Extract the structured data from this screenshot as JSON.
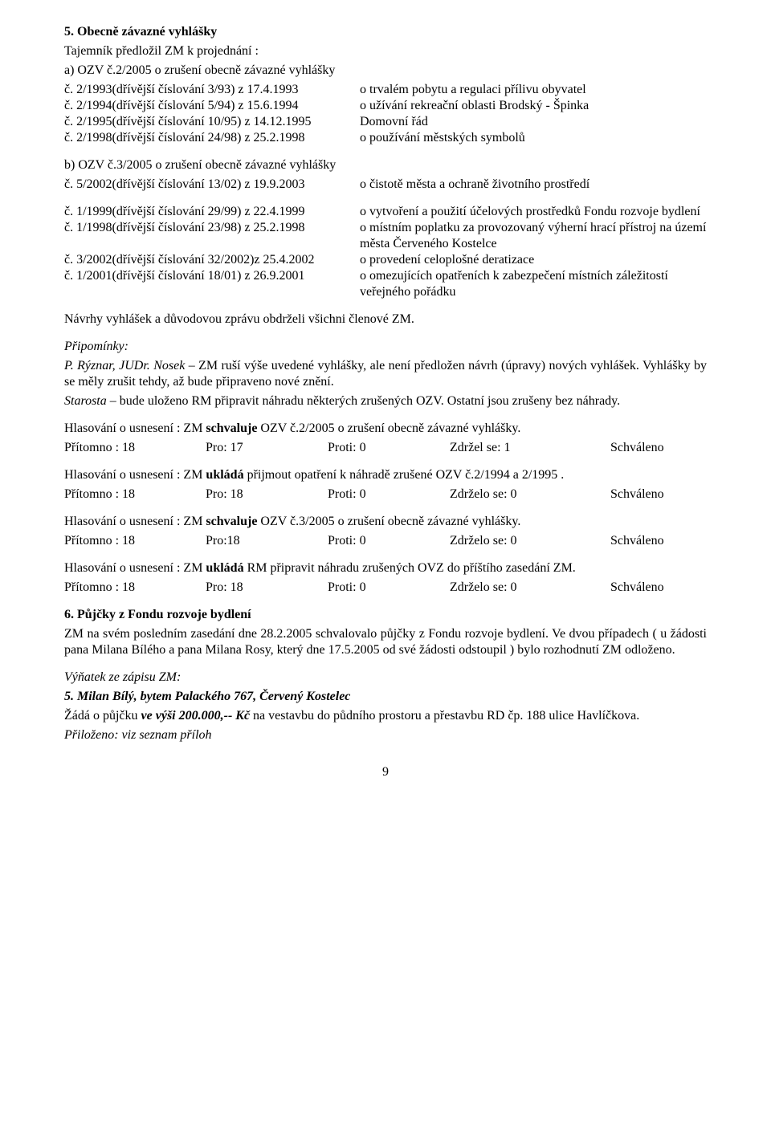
{
  "section5": {
    "heading": "5. Obecně závazné vyhlášky",
    "intro1": "Tajemník předložil ZM k projednání :",
    "intro2": "a) OZV č.2/2005 o zrušení obecně závazné vyhlášky",
    "rowsA": [
      {
        "left": "č. 2/1993(dřívější číslování 3/93)    z 17.4.1993",
        "right": "o trvalém pobytu a regulaci přílivu obyvatel"
      },
      {
        "left": "č. 2/1994(dřívější číslování 5/94)    z 15.6.1994",
        "right": "o užívání rekreační oblasti Brodský - Špinka"
      },
      {
        "left": "č. 2/1995(dřívější číslování 10/95)  z 14.12.1995",
        "right": "Domovní řád"
      },
      {
        "left": "č. 2/1998(dřívější číslování 24/98)  z 25.2.1998",
        "right": "o používání městských symbolů"
      }
    ],
    "intro3": "b) OZV č.3/2005 o zrušení obecně závazné vyhlášky",
    "rowsB": [
      {
        "left": "č. 5/2002(dřívější číslování 13/02)  z 19.9.2003",
        "right": "o čistotě města a ochraně životního prostředí"
      }
    ],
    "rowsC": [
      {
        "left": "č. 1/1999(dřívější číslování 29/99)  z 22.4.1999",
        "right": "o vytvoření a použití účelových prostředků Fondu rozvoje bydlení"
      },
      {
        "left": "č. 1/1998(dřívější číslování 23/98)  z 25.2.1998",
        "right": "o místním poplatku za provozovaný výherní hrací přístroj na území města Červeného Kostelce"
      },
      {
        "left": "č. 3/2002(dřívější číslování 32/2002)z 25.4.2002",
        "right": "o provedení celoplošné deratizace"
      },
      {
        "left": "č. 1/2001(dřívější číslování 18/01)  z 26.9.2001",
        "right": "o omezujících opatřeních k zabezpečení místních záležitostí veřejného pořádku"
      }
    ],
    "proposal": "Návrhy vyhlášek a důvodovou zprávu obdrželi všichni členové ZM.",
    "remarksHeading": "Připomínky:",
    "remarksAuthors": "P. Rýznar, JUDr. Nosek",
    "remarksText1": " – ZM ruší výše uvedené vyhlášky, ale není předložen návrh (úpravy) nových vyhlášek. Vyhlášky by se měly zrušit tehdy, až bude připraveno nové znění.",
    "remarksMayor": "Starosta",
    "remarksText2": " – bude uloženo RM připravit náhradu některých  zrušených OZV. Ostatní jsou zrušeny bez náhrady.",
    "votes": [
      {
        "line1a": "Hlasování o usnesení : ZM ",
        "line1bold": "schvaluje",
        "line1b": " OZV č.2/2005 o zrušení obecně závazné vyhlášky.",
        "p": "Přítomno : 18",
        "f": "Pro: 17",
        "a": "Proti: 0",
        "z": "Zdržel se: 1",
        "r": "Schváleno"
      },
      {
        "line1a": "Hlasování o usnesení : ZM ",
        "line1bold": "ukládá",
        "line1b": " přijmout opatření k náhradě zrušené OZV č.2/1994 a 2/1995 .",
        "p": "Přítomno : 18",
        "f": "Pro: 18",
        "a": "Proti: 0",
        "z": "Zdrželo se: 0",
        "r": "Schváleno"
      },
      {
        "line1a": "Hlasování o usnesení : ZM ",
        "line1bold": "schvaluje",
        "line1b": " OZV č.3/2005 o zrušení obecně závazné vyhlášky.",
        "p": "Přítomno : 18",
        "f": "Pro:18",
        "a": "Proti: 0",
        "z": "Zdrželo se: 0",
        "r": "Schváleno"
      },
      {
        "line1a": "Hlasování o usnesení : ZM ",
        "line1bold": "ukládá",
        "line1b": " RM připravit náhradu  zrušených OVZ do příštího zasedání ZM.",
        "p": "Přítomno : 18",
        "f": "Pro: 18",
        "a": "Proti: 0",
        "z": "Zdrželo se: 0",
        "r": "Schváleno"
      }
    ]
  },
  "section6": {
    "heading": "6. Půjčky z Fondu rozvoje bydlení",
    "text": "ZM na svém posledním zasedání dne 28.2.2005 schvalovalo půjčky z Fondu rozvoje bydlení. Ve dvou případech ( u žádosti pana Milana Bílého a pana Milana Rosy, který dne 17.5.2005 od své žádosti odstoupil ) bylo rozhodnutí ZM odloženo.",
    "excerptHeading": "Výňatek ze zápisu ZM:",
    "applicant": "5. Milan Bílý, bytem Palackého 767, Červený Kostelec",
    "loan1": "Žádá o půjčku  ",
    "loanBold": "ve výši 200.000,-- Kč",
    "loan2": "  na vestavbu do půdního prostoru a přestavbu RD čp. 188 ulice Havlíčkova.",
    "attach": "Přiloženo: viz seznam příloh"
  },
  "pageNumber": "9",
  "style": {
    "voteCols": {
      "c1": "22%",
      "c2": "19%",
      "c3": "19%",
      "c4": "25%",
      "c5": "15%"
    }
  }
}
